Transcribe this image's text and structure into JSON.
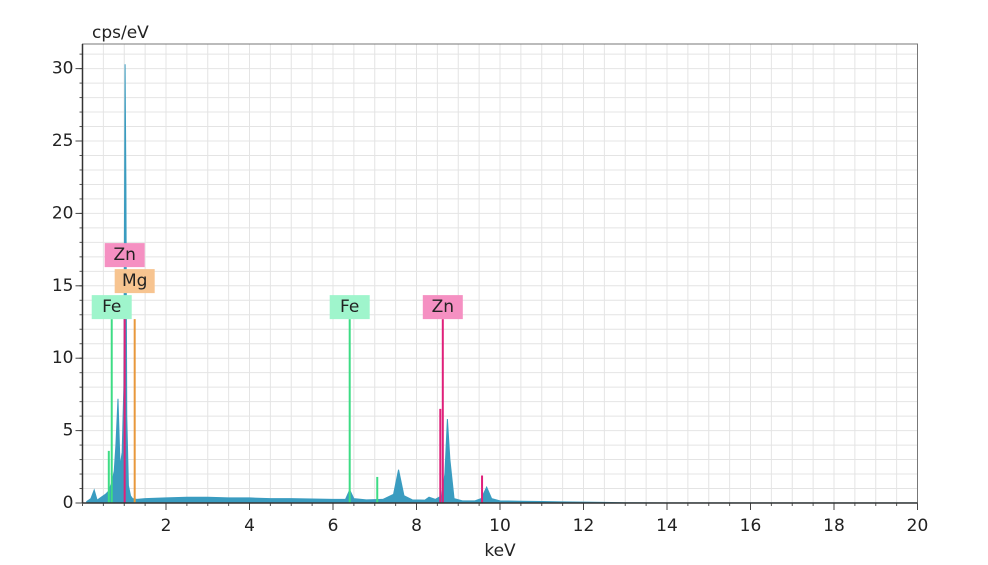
{
  "chart_data": {
    "type": "spectrum",
    "ylabel": "cps/eV",
    "xlabel": "keV",
    "xlim": [
      0,
      20
    ],
    "ylim": [
      0,
      31.7
    ],
    "xticks": [
      2,
      4,
      6,
      8,
      10,
      12,
      14,
      16,
      18,
      20
    ],
    "yticks": [
      0,
      5,
      10,
      15,
      20,
      25,
      30
    ],
    "grid": true,
    "x_minor_step": 0.5,
    "y_minor_step": 1,
    "color": "#3a9cc0",
    "x": [
      0.1,
      0.2,
      0.28,
      0.35,
      0.45,
      0.55,
      0.62,
      0.7,
      0.76,
      0.8,
      0.85,
      0.9,
      0.95,
      0.99,
      1.02,
      1.04,
      1.06,
      1.1,
      1.15,
      1.2,
      1.3,
      1.5,
      2,
      2.5,
      3,
      3.5,
      4,
      4.5,
      5,
      5.5,
      6,
      6.3,
      6.4,
      6.5,
      6.8,
      7.2,
      7.45,
      7.57,
      7.7,
      7.9,
      8.2,
      8.3,
      8.45,
      8.6,
      8.68,
      8.74,
      8.8,
      8.9,
      9.1,
      9.4,
      9.55,
      9.68,
      9.8,
      10,
      10.5,
      11,
      11.5,
      12,
      12.5,
      13,
      14,
      16,
      18,
      20
    ],
    "values": [
      0.1,
      0.3,
      0.9,
      0.2,
      0.4,
      0.6,
      0.8,
      1.4,
      2.2,
      4,
      7.2,
      2.5,
      3.5,
      8,
      30.3,
      22,
      6,
      1.2,
      0.5,
      0.3,
      0.25,
      0.3,
      0.35,
      0.4,
      0.4,
      0.35,
      0.35,
      0.3,
      0.3,
      0.28,
      0.25,
      0.25,
      0.9,
      0.3,
      0.22,
      0.25,
      0.6,
      2.3,
      0.5,
      0.22,
      0.2,
      0.4,
      0.25,
      0.5,
      2,
      5.8,
      3,
      0.3,
      0.15,
      0.15,
      0.3,
      1.1,
      0.3,
      0.15,
      0.12,
      0.1,
      0.08,
      0.06,
      0.04,
      0.02,
      0.01,
      0.01,
      0.01,
      0.01
    ],
    "markers": [
      {
        "label": "Fe",
        "energy": 0.7,
        "height": 12.7,
        "color": "#3ddc84",
        "label_fill": "#9ff5cc"
      },
      {
        "label": "Mg",
        "energy": 1.25,
        "height": 12.7,
        "color": "#e8983c",
        "label_fill": "#f7c490"
      },
      {
        "label": "Zn",
        "energy": 1.01,
        "height": 12.7,
        "color": "#e0207a",
        "label_fill": "#f590c2"
      },
      {
        "label": "Fe",
        "energy": 6.4,
        "height": 12.7,
        "color": "#3ddc84",
        "label_fill": "#9ff5cc"
      },
      {
        "label": "Zn",
        "energy": 8.63,
        "height": 12.7,
        "color": "#e0207a",
        "label_fill": "#f590c2"
      }
    ],
    "minor_lines": [
      {
        "energy": 0.63,
        "height": 3.6,
        "color": "#3ddc84"
      },
      {
        "energy": 7.06,
        "height": 1.8,
        "color": "#3ddc84"
      },
      {
        "energy": 8.57,
        "height": 6.5,
        "color": "#e0207a"
      },
      {
        "energy": 9.57,
        "height": 1.9,
        "color": "#e0207a"
      }
    ]
  }
}
